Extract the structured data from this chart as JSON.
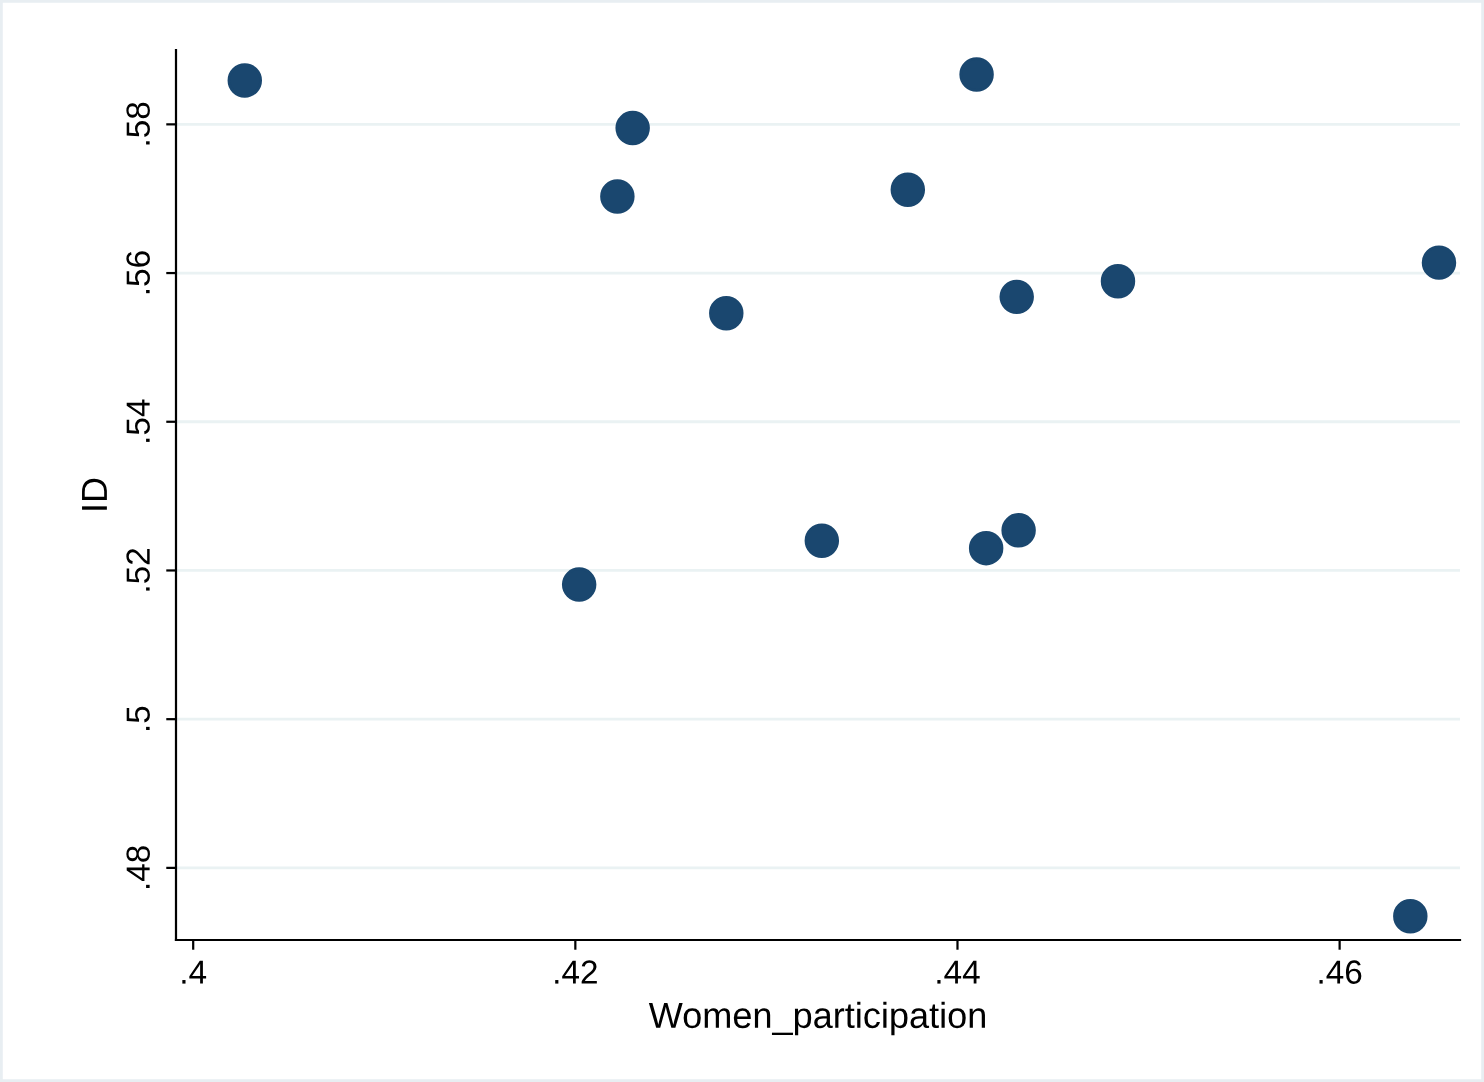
{
  "chart_data": {
    "type": "scatter",
    "xlabel": "Women_participation",
    "ylabel": "ID",
    "x": [
      0.4027,
      0.423,
      0.4222,
      0.4279,
      0.4202,
      0.4329,
      0.4374,
      0.441,
      0.4431,
      0.4415,
      0.4432,
      0.4484,
      0.4652,
      0.4637
    ],
    "values": [
      0.5859,
      0.5795,
      0.5703,
      0.5546,
      0.5181,
      0.524,
      0.5712,
      0.5867,
      0.5568,
      0.523,
      0.5254,
      0.5589,
      0.5614,
      0.4735
    ],
    "color": "#1a476f",
    "marker": "circle",
    "xlim": [
      0.3991,
      0.4663
    ],
    "ylim": [
      0.4703,
      0.59
    ],
    "xticks": [
      {
        "value": 0.4,
        "label": ".4"
      },
      {
        "value": 0.42,
        "label": ".42"
      },
      {
        "value": 0.44,
        "label": ".44"
      },
      {
        "value": 0.46,
        "label": ".46"
      }
    ],
    "yticks": [
      {
        "value": 0.48,
        "label": ".48"
      },
      {
        "value": 0.5,
        "label": ".5"
      },
      {
        "value": 0.52,
        "label": ".52"
      },
      {
        "value": 0.54,
        "label": ".54"
      },
      {
        "value": 0.56,
        "label": ".56"
      },
      {
        "value": 0.58,
        "label": ".58"
      }
    ],
    "grid": "y",
    "legend": false
  }
}
